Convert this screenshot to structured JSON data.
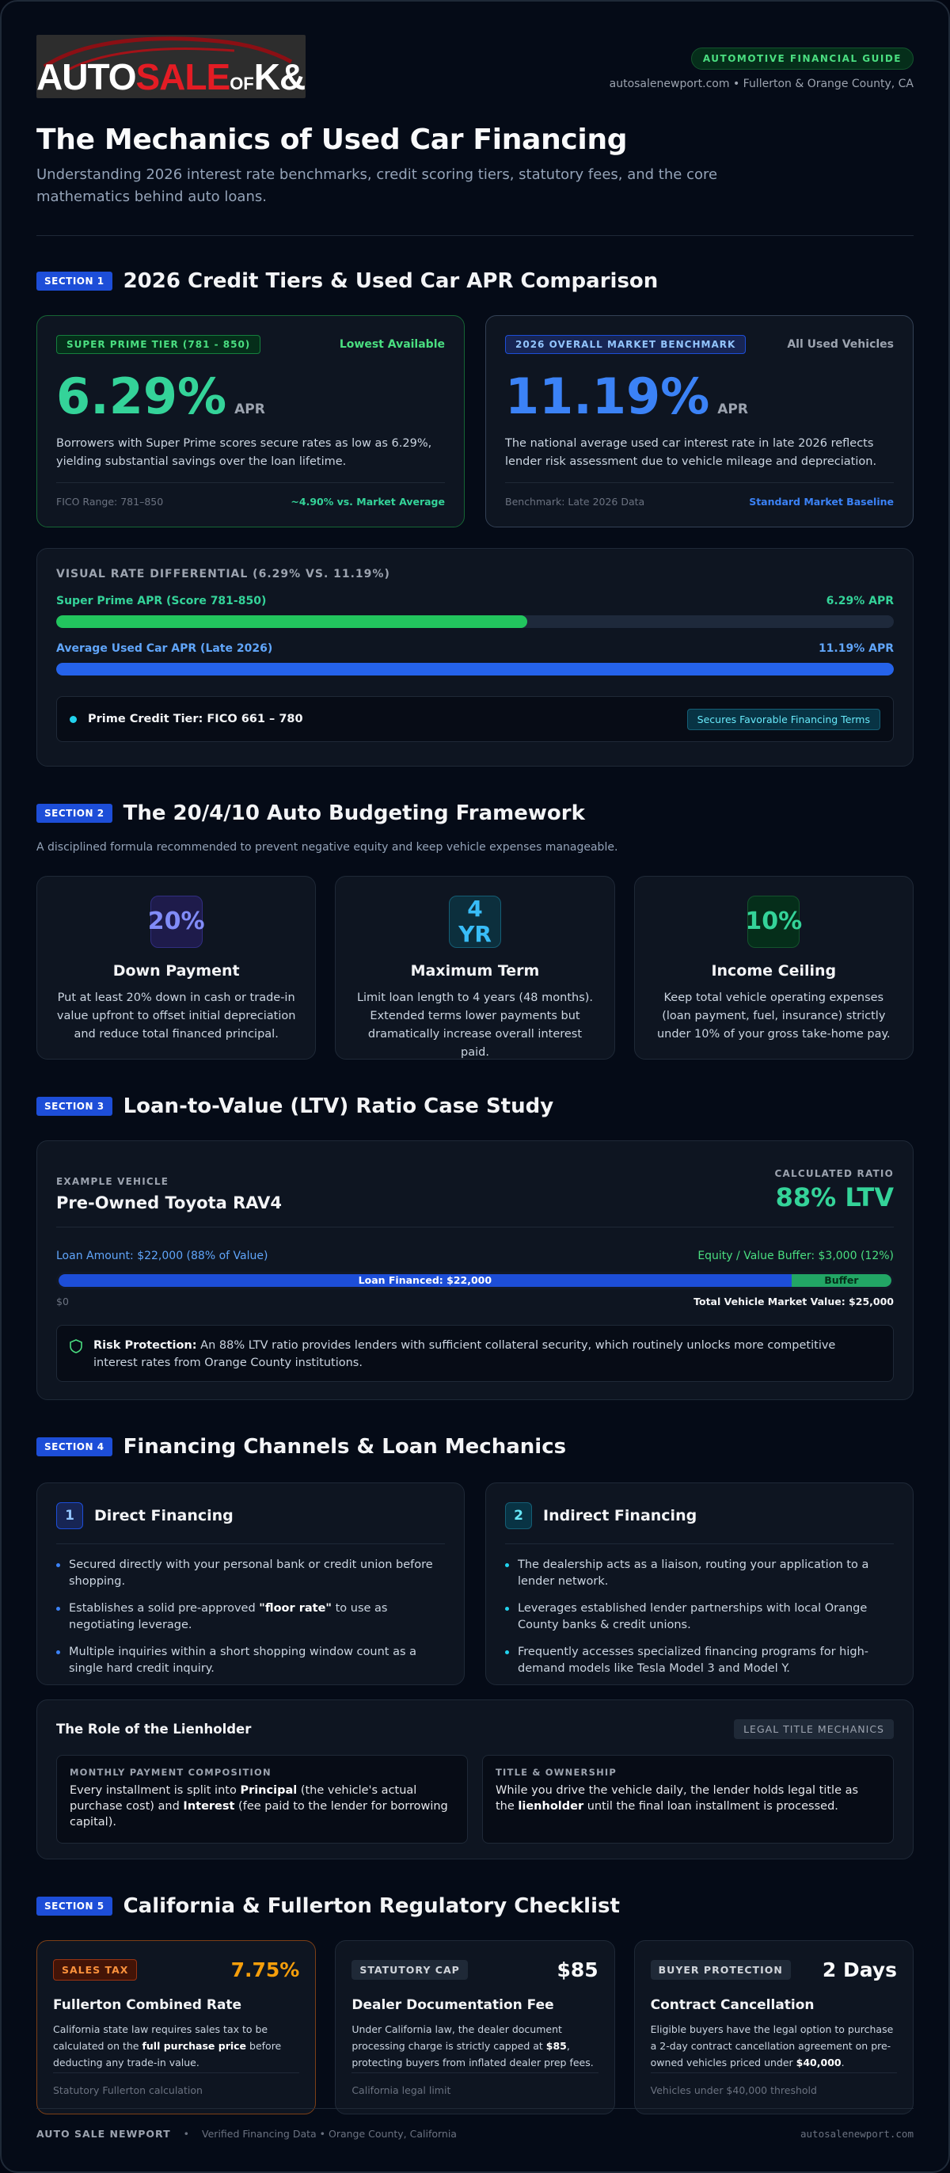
{
  "header": {
    "logo": {
      "part1": "AUTO",
      "part2": "SALE",
      "part3": "OF",
      "part4": "K&Z"
    },
    "guide_badge": "AUTOMOTIVE FINANCIAL GUIDE",
    "site_info": "autosalenewport.com • Fullerton & Orange County, CA",
    "title": "The Mechanics of Used Car Financing",
    "subtitle": "Understanding 2026 interest rate benchmarks, credit scoring tiers, statutory fees, and the core mathematics behind auto loans."
  },
  "section1": {
    "badge": "SECTION 1",
    "title": "2026 Credit Tiers & Used Car APR Comparison",
    "super_prime": {
      "pill": "SUPER PRIME TIER (781 - 850)",
      "tag": "Lowest Available",
      "rate": "6.29%",
      "apr": "APR",
      "desc": "Borrowers with Super Prime scores secure rates as low as 6.29%, yielding substantial savings over the loan lifetime.",
      "foot_left": "FICO Range: 781–850",
      "foot_right": "~4.90% vs. Market Average"
    },
    "market": {
      "pill": "2026 OVERALL MARKET BENCHMARK",
      "tag": "All Used Vehicles",
      "rate": "11.19%",
      "apr": "APR",
      "desc": "The national average used car interest rate in late 2026 reflects lender risk assessment due to vehicle mileage and depreciation.",
      "foot_left": "Benchmark: Late 2026 Data",
      "foot_right": "Standard Market Baseline"
    },
    "differential": {
      "title": "VISUAL RATE DIFFERENTIAL (6.29% VS. 11.19%)",
      "bar1_label": "Super Prime APR (Score 781-850)",
      "bar1_value": "6.29% APR",
      "bar1_fraction": 0.562,
      "bar2_label": "Average Used Car APR (Late 2026)",
      "bar2_value": "11.19% APR",
      "bar2_fraction": 1.0,
      "prime_label": "Prime Credit Tier: FICO 661 – 780",
      "prime_tag": "Secures Favorable Financing Terms"
    }
  },
  "section2": {
    "badge": "SECTION 2",
    "title": "The 20/4/10 Auto Budgeting Framework",
    "note": "A disciplined formula recommended to prevent negative equity and keep vehicle expenses manageable.",
    "cards": [
      {
        "icon": "20%",
        "title": "Down Payment",
        "desc": "Put at least 20% down in cash or trade-in value upfront to offset initial depreciation and reduce total financed principal."
      },
      {
        "icon_top": "4",
        "icon_bottom": "YR",
        "title": "Maximum Term",
        "desc": "Limit loan length to 4 years (48 months). Extended terms lower payments but dramatically increase overall interest paid."
      },
      {
        "icon": "10%",
        "title": "Income Ceiling",
        "desc": "Keep total vehicle operating expenses (loan payment, fuel, insurance) strictly under 10% of your gross take-home pay."
      }
    ]
  },
  "section3": {
    "badge": "SECTION 3",
    "title": "Loan-to-Value (LTV) Ratio Case Study",
    "eyebrow_left": "EXAMPLE VEHICLE",
    "vehicle": "Pre-Owned Toyota RAV4",
    "eyebrow_right": "CALCULATED RATIO",
    "ratio": "88% LTV",
    "loan_label": "Loan Amount: $22,000 (88% of Value)",
    "equity_label": "Equity / Value Buffer: $3,000 (12%)",
    "loan_bar": "Loan Financed: $22,000",
    "buffer_bar": "Buffer",
    "loan_fraction": 0.88,
    "axis_min": "$0",
    "axis_max": "Total Vehicle Market Value: $25,000",
    "risk_strong": "Risk Protection:",
    "risk_text": "An 88% LTV ratio provides lenders with sufficient collateral security, which routinely unlocks more competitive interest rates from Orange County institutions."
  },
  "section4": {
    "badge": "SECTION 4",
    "title": "Financing Channels & Loan Mechanics",
    "direct": {
      "num": "1",
      "title": "Direct Financing",
      "b1": "Secured directly with your personal bank or credit union before shopping.",
      "b2_pre": "Establishes a solid pre-approved ",
      "b2_strong": "\"floor rate\"",
      "b2_post": " to use as negotiating leverage.",
      "b3": "Multiple inquiries within a short shopping window count as a single hard credit inquiry."
    },
    "indirect": {
      "num": "2",
      "title": "Indirect Financing",
      "b1": "The dealership acts as a liaison, routing your application to a lender network.",
      "b2": "Leverages established lender partnerships with local Orange County banks & credit unions.",
      "b3": "Frequently accesses specialized financing programs for high-demand models like Tesla Model 3 and Model Y."
    },
    "lien": {
      "title": "The Role of the Lienholder",
      "tag": "LEGAL TITLE MECHANICS",
      "box1_eyebrow": "MONTHLY PAYMENT COMPOSITION",
      "box1_a": "Every installment is split into ",
      "box1_b": "Principal",
      "box1_c": " (the vehicle's actual purchase cost) and ",
      "box1_d": "Interest",
      "box1_e": " (fee paid to the lender for borrowing capital).",
      "box2_eyebrow": "TITLE & OWNERSHIP",
      "box2_a": "While you drive the vehicle daily, the lender holds legal title as the ",
      "box2_b": "lienholder",
      "box2_c": " until the final loan installment is processed."
    }
  },
  "section5": {
    "badge": "SECTION 5",
    "title": "California & Fullerton Regulatory Checklist",
    "cards": [
      {
        "tag": "SALES TAX",
        "value": "7.75%",
        "title": "Fullerton Combined Rate",
        "desc_a": "California state law requires sales tax to be calculated on the ",
        "desc_b": "full purchase price",
        "desc_c": " before deducting any trade-in value.",
        "foot": "Statutory Fullerton calculation"
      },
      {
        "tag": "STATUTORY CAP",
        "value": "$85",
        "title": "Dealer Documentation Fee",
        "desc_a": "Under California law, the dealer document processing charge is strictly capped at ",
        "desc_b": "$85",
        "desc_c": ", protecting buyers from inflated dealer prep fees.",
        "foot": "California legal limit"
      },
      {
        "tag": "BUYER PROTECTION",
        "value": "2 Days",
        "title": "Contract Cancellation",
        "desc_a": "Eligible buyers have the legal option to purchase a 2-day contract cancellation agreement on pre-owned vehicles priced under ",
        "desc_b": "$40,000",
        "desc_c": ".",
        "foot": "Vehicles under $40,000 threshold"
      }
    ]
  },
  "footer": {
    "brand": "AUTO SALE NEWPORT",
    "sep": "•",
    "verified": "Verified Financing Data • Orange County, California",
    "url": "autosalenewport.com"
  },
  "colors": {
    "green": "#34d399",
    "blue": "#3b82f6",
    "cyan": "#22d3ee",
    "orange": "#f59e0b",
    "section_badge": "#1d4ed8"
  }
}
